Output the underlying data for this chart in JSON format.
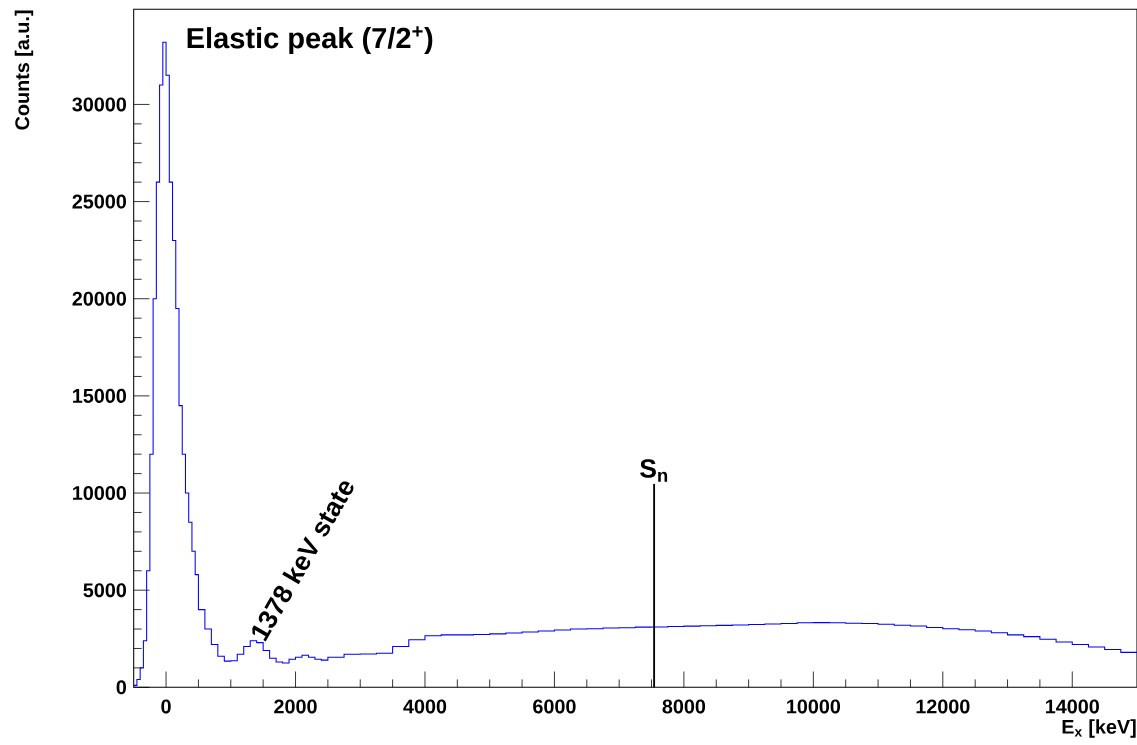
{
  "chart_data": {
    "type": "histogram",
    "xlabel": "E$_{x}$ [keV]",
    "ylabel": "Counts [a.u.]",
    "color": "#0000ff",
    "xlim": [
      -500,
      15000
    ],
    "ylim": [
      0,
      34900
    ],
    "xticks": [
      0,
      2000,
      4000,
      6000,
      8000,
      10000,
      12000,
      14000
    ],
    "yticks": [
      0,
      5000,
      10000,
      15000,
      20000,
      25000,
      30000
    ],
    "bins": [
      -500,
      -450,
      -400,
      -350,
      -300,
      -250,
      -200,
      -150,
      -100,
      -50,
      0,
      50,
      100,
      150,
      200,
      250,
      300,
      350,
      400,
      450,
      500,
      600,
      700,
      800,
      900,
      1000,
      1100,
      1200,
      1300,
      1400,
      1500,
      1600,
      1700,
      1800,
      1900,
      2000,
      2100,
      2200,
      2300,
      2400,
      2500,
      2750,
      3000,
      3250,
      3500,
      3750,
      4000,
      4250,
      4500,
      4750,
      5000,
      5250,
      5500,
      5750,
      6000,
      6250,
      6500,
      6750,
      7000,
      7250,
      7500,
      7750,
      8000,
      8250,
      8500,
      8750,
      9000,
      9250,
      9500,
      9750,
      10000,
      10250,
      10500,
      10750,
      11000,
      11250,
      11500,
      11750,
      12000,
      12250,
      12500,
      12750,
      13000,
      13250,
      13500,
      13750,
      14000,
      14250,
      14500,
      14750,
      15000
    ],
    "values": [
      100,
      400,
      1000,
      2400,
      6000,
      12000,
      20000,
      26000,
      31000,
      33200,
      31500,
      26000,
      23000,
      19500,
      14500,
      12000,
      10000,
      8500,
      7000,
      5800,
      4000,
      3000,
      2200,
      1600,
      1350,
      1370,
      1700,
      2100,
      2400,
      2300,
      1900,
      1500,
      1300,
      1250,
      1450,
      1550,
      1650,
      1550,
      1450,
      1400,
      1550,
      1700,
      1720,
      1750,
      2100,
      2450,
      2650,
      2700,
      2700,
      2720,
      2750,
      2800,
      2850,
      2900,
      2950,
      3000,
      3020,
      3050,
      3070,
      3100,
      3110,
      3130,
      3150,
      3170,
      3190,
      3210,
      3230,
      3260,
      3290,
      3320,
      3330,
      3320,
      3300,
      3290,
      3250,
      3200,
      3160,
      3080,
      3020,
      2960,
      2900,
      2810,
      2700,
      2610,
      2470,
      2330,
      2200,
      2080,
      1950,
      1800
    ],
    "ref_lines": [
      {
        "axis": "x",
        "value": 7540,
        "label": "S$_{n}$",
        "color": "#000000"
      }
    ],
    "annotations": [
      "Elastic peak (7/2$^{+}$)",
      {
        "text": "1378 keV state",
        "x": 1378,
        "y": 2400
      }
    ]
  }
}
